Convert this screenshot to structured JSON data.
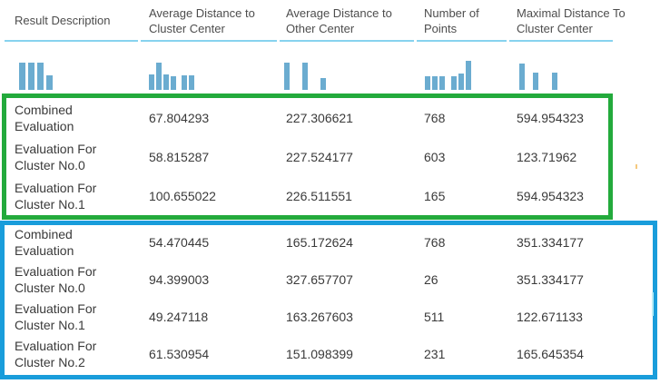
{
  "header": {
    "columns": [
      {
        "label": "Result Description"
      },
      {
        "label": "Average Distance to Cluster Center"
      },
      {
        "label": "Average Distance to Other Center"
      },
      {
        "label": "Number of Points"
      },
      {
        "label": "Maximal Distance To Cluster Center"
      }
    ]
  },
  "table": {
    "rows": [
      {
        "group": "green",
        "label": "Combined Evaluation",
        "avg_dist_cluster_center": "67.804293",
        "avg_dist_other_center": "227.306621",
        "number_of_points": "768",
        "max_dist_cluster_center": "594.954323"
      },
      {
        "group": "green",
        "label": "Evaluation For Cluster No.0",
        "avg_dist_cluster_center": "58.815287",
        "avg_dist_other_center": "227.524177",
        "number_of_points": "603",
        "max_dist_cluster_center": "123.71962"
      },
      {
        "group": "green",
        "label": "Evaluation For Cluster No.1",
        "avg_dist_cluster_center": "100.655022",
        "avg_dist_other_center": "226.511551",
        "number_of_points": "165",
        "max_dist_cluster_center": "594.954323"
      },
      {
        "group": "blue",
        "label": "Combined Evaluation",
        "avg_dist_cluster_center": "54.470445",
        "avg_dist_other_center": "165.172624",
        "number_of_points": "768",
        "max_dist_cluster_center": "351.334177"
      },
      {
        "group": "blue",
        "label": "Evaluation For Cluster No.0",
        "avg_dist_cluster_center": "94.399003",
        "avg_dist_other_center": "327.657707",
        "number_of_points": "26",
        "max_dist_cluster_center": "351.334177"
      },
      {
        "group": "blue",
        "label": "Evaluation For Cluster No.1",
        "avg_dist_cluster_center": "49.247118",
        "avg_dist_other_center": "163.267603",
        "number_of_points": "511",
        "max_dist_cluster_center": "122.671133"
      },
      {
        "group": "blue",
        "label": "Evaluation For Cluster No.2",
        "avg_dist_cluster_center": "61.530954",
        "avg_dist_other_center": "151.098399",
        "number_of_points": "231",
        "max_dist_cluster_center": "165.645354"
      }
    ]
  },
  "chart_data": {
    "type": "bar",
    "note": "column-header histogram sparklines; bars given as [x_px, height_px], bottom edge at y=99px",
    "sparklines": [
      {
        "name": "result-description-histogram",
        "w": 7,
        "bars": [
          [
            21,
            30
          ],
          [
            31,
            30
          ],
          [
            41,
            30
          ],
          [
            51,
            16
          ]
        ]
      },
      {
        "name": "avg-distance-cluster-histogram",
        "w": 6,
        "bars": [
          [
            164,
            17
          ],
          [
            172,
            30
          ],
          [
            180,
            17
          ],
          [
            188,
            15
          ],
          [
            200,
            16
          ],
          [
            208,
            16
          ]
        ]
      },
      {
        "name": "avg-distance-other-histogram",
        "w": 6,
        "bars": [
          [
            313,
            30
          ],
          [
            333,
            30
          ],
          [
            353,
            13
          ]
        ]
      },
      {
        "name": "number-of-points-histogram",
        "w": 6,
        "bars": [
          [
            468,
            15
          ],
          [
            476,
            15
          ],
          [
            484,
            15
          ],
          [
            497,
            15
          ],
          [
            505,
            18
          ],
          [
            513,
            32
          ]
        ]
      },
      {
        "name": "maximal-distance-cluster-histogram",
        "w": 6,
        "bars": [
          [
            572,
            29
          ],
          [
            587,
            19
          ],
          [
            608,
            19
          ]
        ]
      }
    ]
  },
  "colors": {
    "green-box": "#23AA3C",
    "blue-box": "#199DDB",
    "underline": "#87D3EF",
    "bar": "#6BACD0",
    "header-text": "#4D4D4D",
    "body-text": "#3A3A3A",
    "artifact-orange": "#F5C97E",
    "artifact-cyan": "#B8ECF6"
  }
}
